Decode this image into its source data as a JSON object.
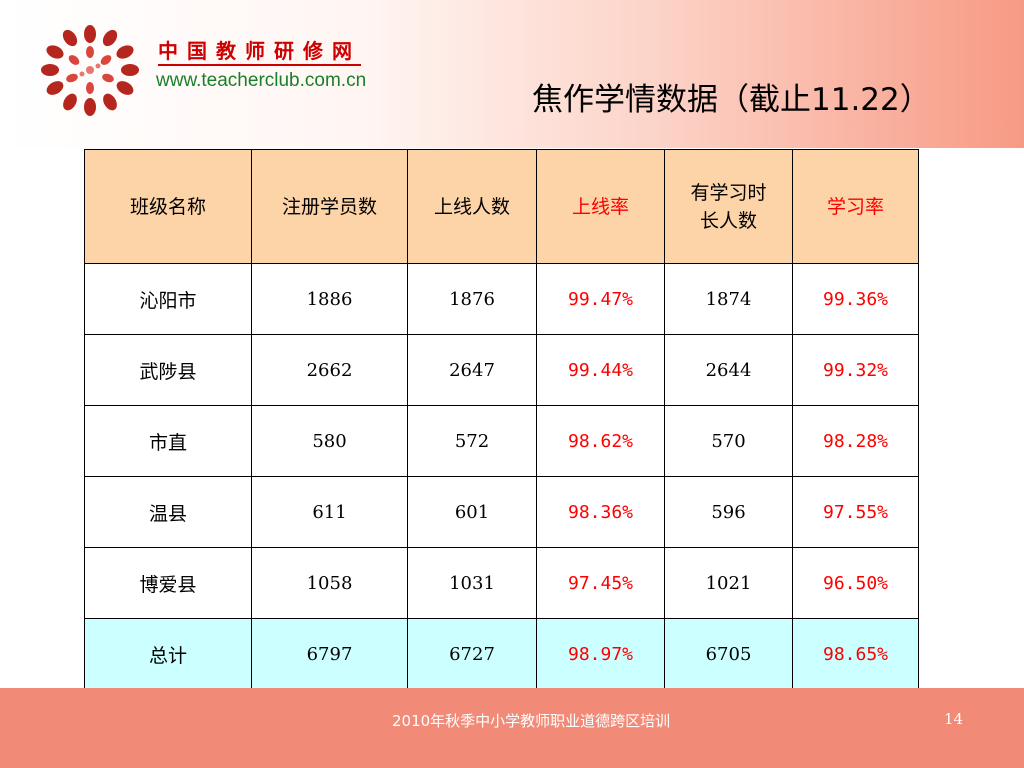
{
  "header": {
    "logo_name": "中国教师研修网",
    "logo_url": "www.teacherclub.com.cn",
    "title": "焦作学情数据（截止11.22）"
  },
  "colors": {
    "header_fill": "#fcd2c6",
    "table_header_fill": "#fdd3a8",
    "total_row_fill": "#ccffff",
    "rate_text": "#ff0000",
    "footer_fill": "#f28a78",
    "logo_red": "#cc0000",
    "url_green": "#1a7f2a"
  },
  "table": {
    "headers": [
      "班级名称",
      "注册学员数",
      "上线人数",
      "上线率",
      "有学习时长人数",
      "学习率"
    ],
    "header_lines": {
      "col5_line1": "有学习时",
      "col5_line2": "长人数"
    },
    "rows": [
      {
        "name": "沁阳市",
        "registered": "1886",
        "online": "1876",
        "online_rate": "99.47%",
        "study": "1874",
        "study_rate": "99.36%"
      },
      {
        "name": "武陟县",
        "registered": "2662",
        "online": "2647",
        "online_rate": "99.44%",
        "study": "2644",
        "study_rate": "99.32%"
      },
      {
        "name": "市直",
        "registered": "580",
        "online": "572",
        "online_rate": "98.62%",
        "study": "570",
        "study_rate": "98.28%"
      },
      {
        "name": "温县",
        "registered": "611",
        "online": "601",
        "online_rate": "98.36%",
        "study": "596",
        "study_rate": "97.55%"
      },
      {
        "name": "博爱县",
        "registered": "1058",
        "online": "1031",
        "online_rate": "97.45%",
        "study": "1021",
        "study_rate": "96.50%"
      }
    ],
    "total": {
      "name": "总计",
      "registered": "6797",
      "online": "6727",
      "online_rate": "98.97%",
      "study": "6705",
      "study_rate": "98.65%"
    }
  },
  "footer": {
    "text": "2010年秋季中小学教师职业道德跨区培训",
    "page_number": "14"
  }
}
